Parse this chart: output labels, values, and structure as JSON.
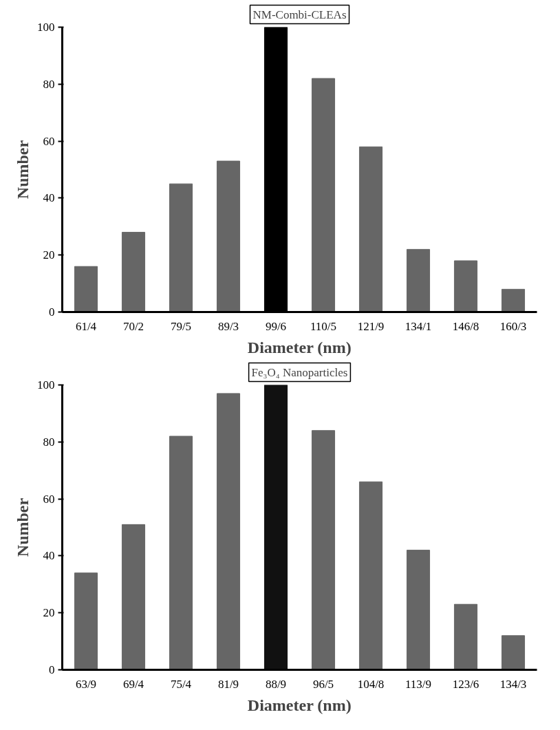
{
  "chart_data": [
    {
      "type": "bar",
      "title": "NM-Combi-CLEAs",
      "xlabel": "Diameter (nm)",
      "ylabel": "Number",
      "categories": [
        "61/4",
        "70/2",
        "79/5",
        "89/3",
        "99/6",
        "110/5",
        "121/9",
        "134/1",
        "146/8",
        "160/3"
      ],
      "values": [
        16,
        28,
        45,
        53,
        100,
        82,
        58,
        22,
        18,
        8
      ],
      "colors": [
        "#666666",
        "#666666",
        "#666666",
        "#666666",
        "#000000",
        "#666666",
        "#666666",
        "#666666",
        "#666666",
        "#666666"
      ],
      "ylim": [
        0,
        100
      ],
      "yticks": [
        0,
        20,
        40,
        60,
        80,
        100
      ],
      "grid": false
    },
    {
      "type": "bar",
      "title": "Fe₃O₄ Nanoparticles",
      "xlabel": "Diameter (nm)",
      "ylabel": "Number",
      "categories": [
        "63/9",
        "69/4",
        "75/4",
        "81/9",
        "88/9",
        "96/5",
        "104/8",
        "113/9",
        "123/6",
        "134/3"
      ],
      "values": [
        34,
        51,
        82,
        97,
        100,
        84,
        66,
        42,
        23,
        12
      ],
      "colors": [
        "#666666",
        "#666666",
        "#666666",
        "#666666",
        "#111111",
        "#666666",
        "#666666",
        "#666666",
        "#666666",
        "#666666"
      ],
      "ylim": [
        0,
        100
      ],
      "yticks": [
        0,
        20,
        40,
        60,
        80,
        100
      ],
      "grid": false
    }
  ]
}
